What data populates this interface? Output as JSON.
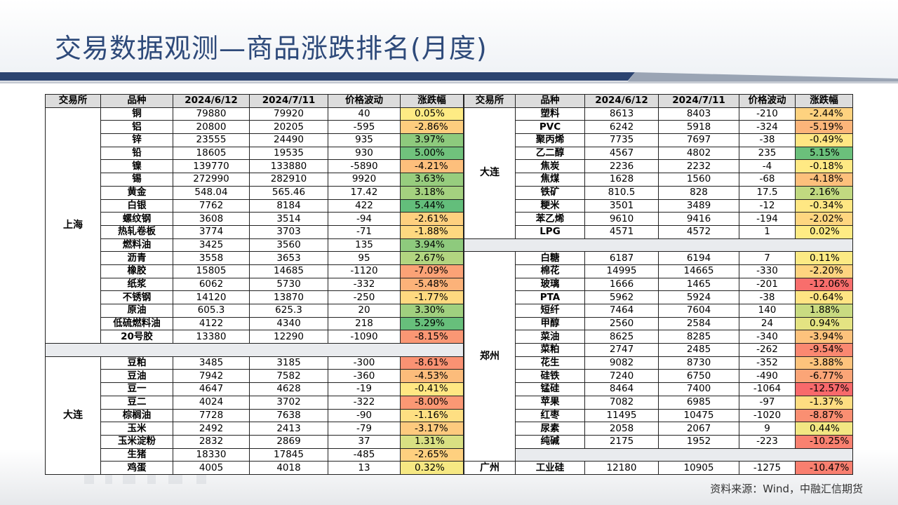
{
  "title": "交易数据观测—商品涨跌排名(月度)",
  "source": "资料来源：Wind，中融汇信期货",
  "headers": [
    "交易所",
    "品种",
    "2024/6/12",
    "2024/7/11",
    "价格波动",
    "涨跌幅"
  ],
  "colors": {
    "title": "#2e4a7a",
    "header_bg": "#dcdcdc",
    "sep_bg": "#e9ebee",
    "max_rise": "#63be7b",
    "max_fall": "#f8696b",
    "neutral": "#ffeb84"
  },
  "left_table": [
    {
      "exchange": "上海",
      "rows": [
        {
          "name": "铜",
          "p1": "79880",
          "p2": "79920",
          "diff": "40",
          "pct": "0.05%"
        },
        {
          "name": "铝",
          "p1": "20800",
          "p2": "20205",
          "diff": "-595",
          "pct": "-2.86%"
        },
        {
          "name": "锌",
          "p1": "23555",
          "p2": "24490",
          "diff": "935",
          "pct": "3.97%"
        },
        {
          "name": "铅",
          "p1": "18605",
          "p2": "19535",
          "diff": "930",
          "pct": "5.00%"
        },
        {
          "name": "镍",
          "p1": "139770",
          "p2": "133880",
          "diff": "-5890",
          "pct": "-4.21%"
        },
        {
          "name": "锡",
          "p1": "272990",
          "p2": "282910",
          "diff": "9920",
          "pct": "3.63%"
        },
        {
          "name": "黄金",
          "p1": "548.04",
          "p2": "565.46",
          "diff": "17.42",
          "pct": "3.18%"
        },
        {
          "name": "白银",
          "p1": "7762",
          "p2": "8184",
          "diff": "422",
          "pct": "5.44%"
        },
        {
          "name": "螺纹钢",
          "p1": "3608",
          "p2": "3514",
          "diff": "-94",
          "pct": "-2.61%"
        },
        {
          "name": "热轧卷板",
          "p1": "3774",
          "p2": "3703",
          "diff": "-71",
          "pct": "-1.88%"
        },
        {
          "name": "燃料油",
          "p1": "3425",
          "p2": "3560",
          "diff": "135",
          "pct": "3.94%"
        },
        {
          "name": "沥青",
          "p1": "3558",
          "p2": "3653",
          "diff": "95",
          "pct": "2.67%"
        },
        {
          "name": "橡胶",
          "p1": "15805",
          "p2": "14685",
          "diff": "-1120",
          "pct": "-7.09%"
        },
        {
          "name": "纸浆",
          "p1": "6062",
          "p2": "5730",
          "diff": "-332",
          "pct": "-5.48%"
        },
        {
          "name": "不锈钢",
          "p1": "14120",
          "p2": "13870",
          "diff": "-250",
          "pct": "-1.77%"
        },
        {
          "name": "原油",
          "p1": "605.3",
          "p2": "625.3",
          "diff": "20",
          "pct": "3.30%"
        },
        {
          "name": "低硫燃料油",
          "p1": "4122",
          "p2": "4340",
          "diff": "218",
          "pct": "5.29%"
        },
        {
          "name": "20号胶",
          "p1": "13380",
          "p2": "12290",
          "diff": "-1090",
          "pct": "-8.15%"
        }
      ]
    },
    {
      "exchange": "大连",
      "rows": [
        {
          "name": "豆粕",
          "p1": "3485",
          "p2": "3185",
          "diff": "-300",
          "pct": "-8.61%"
        },
        {
          "name": "豆油",
          "p1": "7942",
          "p2": "7582",
          "diff": "-360",
          "pct": "-4.53%"
        },
        {
          "name": "豆一",
          "p1": "4647",
          "p2": "4628",
          "diff": "-19",
          "pct": "-0.41%"
        },
        {
          "name": "豆二",
          "p1": "4024",
          "p2": "3702",
          "diff": "-322",
          "pct": "-8.00%"
        },
        {
          "name": "棕榈油",
          "p1": "7728",
          "p2": "7638",
          "diff": "-90",
          "pct": "-1.16%"
        },
        {
          "name": "玉米",
          "p1": "2492",
          "p2": "2413",
          "diff": "-79",
          "pct": "-3.17%"
        },
        {
          "name": "玉米淀粉",
          "p1": "2832",
          "p2": "2869",
          "diff": "37",
          "pct": "1.31%"
        },
        {
          "name": "生猪",
          "p1": "18330",
          "p2": "17845",
          "diff": "-485",
          "pct": "-2.65%"
        },
        {
          "name": "鸡蛋",
          "p1": "4005",
          "p2": "4018",
          "diff": "13",
          "pct": "0.32%"
        }
      ]
    }
  ],
  "right_table": [
    {
      "exchange": "大连",
      "rows": [
        {
          "name": "塑料",
          "p1": "8613",
          "p2": "8403",
          "diff": "-210",
          "pct": "-2.44%"
        },
        {
          "name": "PVC",
          "p1": "6242",
          "p2": "5918",
          "diff": "-324",
          "pct": "-5.19%"
        },
        {
          "name": "聚丙烯",
          "p1": "7735",
          "p2": "7697",
          "diff": "-38",
          "pct": "-0.49%"
        },
        {
          "name": "乙二醇",
          "p1": "4567",
          "p2": "4802",
          "diff": "235",
          "pct": "5.15%"
        },
        {
          "name": "焦炭",
          "p1": "2236",
          "p2": "2232",
          "diff": "-4",
          "pct": "-0.18%"
        },
        {
          "name": "焦煤",
          "p1": "1628",
          "p2": "1560",
          "diff": "-68",
          "pct": "-4.18%"
        },
        {
          "name": "铁矿",
          "p1": "810.5",
          "p2": "828",
          "diff": "17.5",
          "pct": "2.16%"
        },
        {
          "name": "粳米",
          "p1": "3501",
          "p2": "3489",
          "diff": "-12",
          "pct": "-0.34%"
        },
        {
          "name": "苯乙烯",
          "p1": "9610",
          "p2": "9416",
          "diff": "-194",
          "pct": "-2.02%"
        },
        {
          "name": "LPG",
          "p1": "4571",
          "p2": "4572",
          "diff": "1",
          "pct": "0.02%"
        }
      ]
    },
    {
      "exchange": "郑州",
      "rows": [
        {
          "name": "白糖",
          "p1": "6187",
          "p2": "6194",
          "diff": "7",
          "pct": "0.11%"
        },
        {
          "name": "棉花",
          "p1": "14995",
          "p2": "14665",
          "diff": "-330",
          "pct": "-2.20%"
        },
        {
          "name": "玻璃",
          "p1": "1666",
          "p2": "1465",
          "diff": "-201",
          "pct": "-12.06%"
        },
        {
          "name": "PTA",
          "p1": "5962",
          "p2": "5924",
          "diff": "-38",
          "pct": "-0.64%"
        },
        {
          "name": "短纤",
          "p1": "7464",
          "p2": "7604",
          "diff": "140",
          "pct": "1.88%"
        },
        {
          "name": "甲醇",
          "p1": "2560",
          "p2": "2584",
          "diff": "24",
          "pct": "0.94%"
        },
        {
          "name": "菜油",
          "p1": "8625",
          "p2": "8285",
          "diff": "-340",
          "pct": "-3.94%"
        },
        {
          "name": "菜粕",
          "p1": "2747",
          "p2": "2485",
          "diff": "-262",
          "pct": "-9.54%"
        },
        {
          "name": "花生",
          "p1": "9082",
          "p2": "8730",
          "diff": "-352",
          "pct": "-3.88%"
        },
        {
          "name": "硅铁",
          "p1": "7240",
          "p2": "6750",
          "diff": "-490",
          "pct": "-6.77%"
        },
        {
          "name": "锰硅",
          "p1": "8464",
          "p2": "7400",
          "diff": "-1064",
          "pct": "-12.57%"
        },
        {
          "name": "苹果",
          "p1": "7082",
          "p2": "6985",
          "diff": "-97",
          "pct": "-1.37%"
        },
        {
          "name": "红枣",
          "p1": "11495",
          "p2": "10475",
          "diff": "-1020",
          "pct": "-8.87%"
        },
        {
          "name": "尿素",
          "p1": "2058",
          "p2": "2067",
          "diff": "9",
          "pct": "0.44%"
        },
        {
          "name": "纯碱",
          "p1": "2175",
          "p2": "1952",
          "diff": "-223",
          "pct": "-10.25%"
        }
      ]
    },
    {
      "exchange": "广州",
      "rows": [
        {
          "name": "工业硅",
          "p1": "12180",
          "p2": "10905",
          "diff": "-1275",
          "pct": "-10.47%"
        }
      ]
    }
  ]
}
